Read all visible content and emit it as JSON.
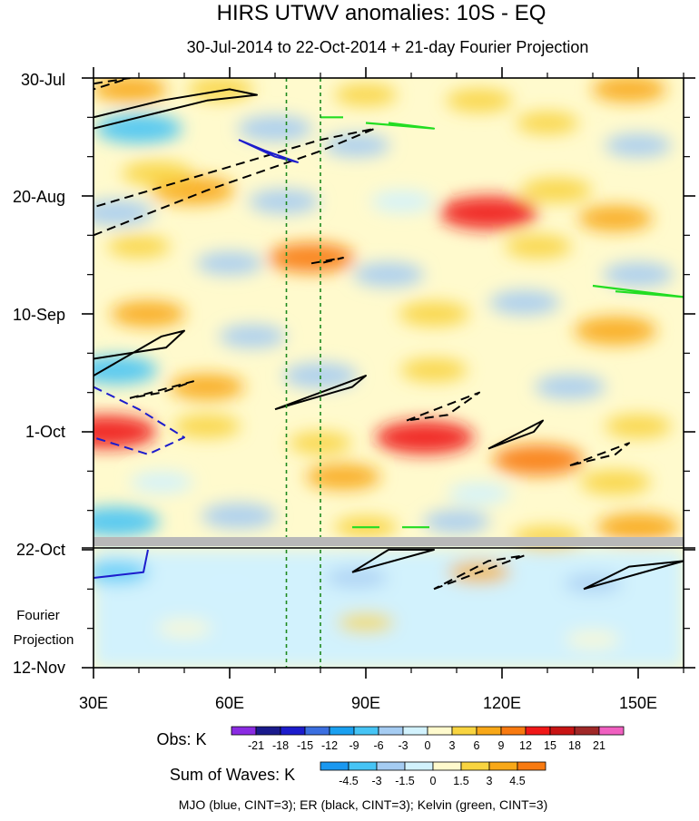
{
  "chart_data": {
    "type": "heatmap",
    "title": "HIRS UTWV anomalies: 10S - EQ",
    "subtitle": "30-Jul-2014 to 22-Oct-2014 + 21-day Fourier Projection",
    "x_axis": {
      "unit": "degrees longitude",
      "range": [
        30,
        160
      ],
      "ticks": [
        {
          "value": 30,
          "label": "30E"
        },
        {
          "value": 60,
          "label": "60E"
        },
        {
          "value": 90,
          "label": "90E"
        },
        {
          "value": 120,
          "label": "120E"
        },
        {
          "value": 150,
          "label": "150E"
        }
      ]
    },
    "y_axis": {
      "unit": "days since 30-Jul-2014",
      "range": [
        0,
        105
      ],
      "ticks": [
        {
          "value": 0,
          "label": "30-Jul"
        },
        {
          "value": 21,
          "label": "20-Aug"
        },
        {
          "value": 42,
          "label": "10-Sep"
        },
        {
          "value": 63,
          "label": "1-Oct"
        },
        {
          "value": 84,
          "label": "22-Oct"
        },
        {
          "value": 105,
          "label": "12-Nov"
        }
      ]
    },
    "observation_end_day": 84,
    "projection_label_line1": "Fourier",
    "projection_label_line2": "Projection",
    "reference_longitudes": [
      72.5,
      80
    ],
    "obs_colorbar": {
      "label": "Obs: K",
      "levels": [
        "-21",
        "-18",
        "-15",
        "-12",
        "-9",
        "-6",
        "-3",
        "0",
        "3",
        "6",
        "9",
        "12",
        "15",
        "18",
        "21"
      ],
      "colors": [
        "#8a2be2",
        "#1a1a8c",
        "#1c1ccc",
        "#3b6fe0",
        "#1aa0f0",
        "#46c4f5",
        "#a5ccf2",
        "#d2f2fd",
        "#fffacd",
        "#f8d440",
        "#f8a818",
        "#f87a10",
        "#f01818",
        "#c81414",
        "#a02828",
        "#f060c0"
      ]
    },
    "waves_colorbar": {
      "label": "Sum of Waves: K",
      "levels": [
        "-4.5",
        "-3",
        "-1.5",
        "0",
        "1.5",
        "3",
        "4.5"
      ],
      "colors": [
        "#1a98f0",
        "#46c4f5",
        "#a5ccf2",
        "#d2f2fd",
        "#fffacd",
        "#f8d440",
        "#f8a818",
        "#f87a10"
      ]
    },
    "footer": "MJO (blue, CINT=3); ER (black, CINT=3); Kelvin (green, CINT=3)",
    "anomaly_regions": [
      {
        "lon": 38,
        "day": 2,
        "value": 6
      },
      {
        "lon": 58,
        "day": 2,
        "value": 4
      },
      {
        "lon": 90,
        "day": 3,
        "value": 3
      },
      {
        "lon": 115,
        "day": 4,
        "value": 4
      },
      {
        "lon": 148,
        "day": 2,
        "value": 6
      },
      {
        "lon": 40,
        "day": 9,
        "value": -9
      },
      {
        "lon": 70,
        "day": 9,
        "value": -6
      },
      {
        "lon": 88,
        "day": 12,
        "value": -4
      },
      {
        "lon": 130,
        "day": 8,
        "value": 3
      },
      {
        "lon": 150,
        "day": 12,
        "value": -4
      },
      {
        "lon": 52,
        "day": 20,
        "value": 8
      },
      {
        "lon": 44,
        "day": 17,
        "value": 5
      },
      {
        "lon": 35,
        "day": 24,
        "value": -6
      },
      {
        "lon": 72,
        "day": 22,
        "value": -5
      },
      {
        "lon": 98,
        "day": 22,
        "value": -3
      },
      {
        "lon": 117,
        "day": 24,
        "value": 12
      },
      {
        "lon": 132,
        "day": 20,
        "value": 5
      },
      {
        "lon": 145,
        "day": 25,
        "value": 6
      },
      {
        "lon": 40,
        "day": 30,
        "value": 3
      },
      {
        "lon": 60,
        "day": 33,
        "value": -4
      },
      {
        "lon": 78,
        "day": 32,
        "value": 9
      },
      {
        "lon": 95,
        "day": 35,
        "value": -5
      },
      {
        "lon": 128,
        "day": 30,
        "value": 4
      },
      {
        "lon": 150,
        "day": 35,
        "value": -5
      },
      {
        "lon": 42,
        "day": 42,
        "value": 6
      },
      {
        "lon": 65,
        "day": 46,
        "value": -4
      },
      {
        "lon": 105,
        "day": 42,
        "value": 5
      },
      {
        "lon": 125,
        "day": 40,
        "value": -5
      },
      {
        "lon": 145,
        "day": 45,
        "value": 8
      },
      {
        "lon": 35,
        "day": 52,
        "value": -8
      },
      {
        "lon": 55,
        "day": 55,
        "value": 6
      },
      {
        "lon": 80,
        "day": 53,
        "value": -6
      },
      {
        "lon": 105,
        "day": 52,
        "value": 4
      },
      {
        "lon": 135,
        "day": 55,
        "value": -5
      },
      {
        "lon": 33,
        "day": 63,
        "value": 12
      },
      {
        "lon": 55,
        "day": 62,
        "value": 4
      },
      {
        "lon": 80,
        "day": 65,
        "value": 3
      },
      {
        "lon": 103,
        "day": 64,
        "value": 14
      },
      {
        "lon": 128,
        "day": 68,
        "value": 10
      },
      {
        "lon": 150,
        "day": 62,
        "value": 4
      },
      {
        "lon": 45,
        "day": 72,
        "value": -3
      },
      {
        "lon": 85,
        "day": 71,
        "value": 6
      },
      {
        "lon": 115,
        "day": 74,
        "value": -3
      },
      {
        "lon": 145,
        "day": 72,
        "value": 5
      },
      {
        "lon": 35,
        "day": 79,
        "value": -9
      },
      {
        "lon": 62,
        "day": 78,
        "value": -6
      },
      {
        "lon": 90,
        "day": 80,
        "value": 3
      },
      {
        "lon": 110,
        "day": 79,
        "value": -4
      },
      {
        "lon": 150,
        "day": 80,
        "value": 8
      },
      {
        "lon": 130,
        "day": 82,
        "value": 5
      },
      {
        "lon": 35,
        "day": 88,
        "value": -4
      },
      {
        "lon": 60,
        "day": 90,
        "value": -1.5
      },
      {
        "lon": 88,
        "day": 89,
        "value": -3
      },
      {
        "lon": 115,
        "day": 88,
        "value": 3
      },
      {
        "lon": 140,
        "day": 90,
        "value": -2
      },
      {
        "lon": 50,
        "day": 98,
        "value": 1
      },
      {
        "lon": 90,
        "day": 97,
        "value": 1.5
      },
      {
        "lon": 140,
        "day": 100,
        "value": 1
      }
    ],
    "contours": [
      {
        "name": "ER",
        "color": "#000000",
        "dashed": false,
        "points": [
          [
            30,
            9
          ],
          [
            45,
            6
          ],
          [
            55,
            4
          ],
          [
            66,
            3
          ],
          [
            60,
            2
          ],
          [
            45,
            4
          ],
          [
            30,
            7
          ]
        ]
      },
      {
        "name": "ER",
        "color": "#000000",
        "dashed": true,
        "points": [
          [
            30,
            1
          ],
          [
            38,
            0
          ],
          [
            30,
            2
          ]
        ]
      },
      {
        "name": "ER",
        "color": "#000000",
        "dashed": true,
        "points": [
          [
            30,
            28
          ],
          [
            55,
            20
          ],
          [
            80,
            13
          ],
          [
            92,
            9
          ],
          [
            80,
            11
          ],
          [
            55,
            17
          ],
          [
            30,
            23
          ]
        ]
      },
      {
        "name": "MJO",
        "color": "#1c1ccc",
        "dashed": false,
        "points": [
          [
            62,
            11
          ],
          [
            68,
            13
          ],
          [
            75,
            15
          ],
          [
            70,
            14
          ],
          [
            62,
            11
          ]
        ]
      },
      {
        "name": "Kelvin",
        "color": "#22dd22",
        "dashed": false,
        "points": [
          [
            80,
            7
          ],
          [
            85,
            7
          ]
        ]
      },
      {
        "name": "Kelvin",
        "color": "#22dd22",
        "dashed": false,
        "points": [
          [
            90,
            8
          ],
          [
            105,
            9
          ],
          [
            95,
            8
          ]
        ]
      },
      {
        "name": "ER",
        "color": "#000000",
        "dashed": true,
        "points": [
          [
            78,
            33
          ],
          [
            85,
            32
          ],
          [
            80,
            33
          ]
        ]
      },
      {
        "name": "Kelvin",
        "color": "#22dd22",
        "dashed": false,
        "points": [
          [
            140,
            37
          ],
          [
            160,
            39
          ],
          [
            145,
            38
          ]
        ]
      },
      {
        "name": "ER",
        "color": "#000000",
        "dashed": false,
        "points": [
          [
            30,
            53
          ],
          [
            45,
            46
          ],
          [
            50,
            45
          ],
          [
            46,
            48
          ],
          [
            30,
            50
          ]
        ]
      },
      {
        "name": "ER",
        "color": "#000000",
        "dashed": true,
        "points": [
          [
            38,
            57
          ],
          [
            52,
            54
          ],
          [
            45,
            56
          ],
          [
            38,
            57
          ]
        ]
      },
      {
        "name": "MJO",
        "color": "#1c1ccc",
        "dashed": true,
        "points": [
          [
            30,
            55
          ],
          [
            40,
            59
          ],
          [
            50,
            64
          ],
          [
            42,
            67
          ],
          [
            30,
            64
          ]
        ]
      },
      {
        "name": "ER",
        "color": "#000000",
        "dashed": false,
        "points": [
          [
            70,
            59
          ],
          [
            90,
            53
          ],
          [
            87,
            55
          ],
          [
            70,
            59
          ]
        ]
      },
      {
        "name": "ER",
        "color": "#000000",
        "dashed": true,
        "points": [
          [
            99,
            61
          ],
          [
            115,
            56
          ],
          [
            108,
            60
          ],
          [
            99,
            61
          ]
        ]
      },
      {
        "name": "ER",
        "color": "#000000",
        "dashed": false,
        "points": [
          [
            117,
            66
          ],
          [
            129,
            61
          ],
          [
            127,
            63
          ],
          [
            117,
            66
          ]
        ]
      },
      {
        "name": "ER",
        "color": "#000000",
        "dashed": true,
        "points": [
          [
            135,
            69
          ],
          [
            148,
            65
          ],
          [
            145,
            67
          ],
          [
            135,
            69
          ]
        ]
      },
      {
        "name": "Kelvin",
        "color": "#22dd22",
        "dashed": false,
        "points": [
          [
            87,
            80
          ],
          [
            93,
            80
          ]
        ]
      },
      {
        "name": "Kelvin",
        "color": "#22dd22",
        "dashed": false,
        "points": [
          [
            98,
            80
          ],
          [
            104,
            80
          ]
        ]
      },
      {
        "name": "MJO",
        "color": "#1c1ccc",
        "dashed": false,
        "points": [
          [
            30,
            89
          ],
          [
            41,
            88
          ],
          [
            42,
            84
          ]
        ]
      },
      {
        "name": "ER",
        "color": "#000000",
        "dashed": false,
        "points": [
          [
            87,
            88
          ],
          [
            105,
            84
          ],
          [
            95,
            84
          ],
          [
            87,
            88
          ]
        ]
      },
      {
        "name": "ER",
        "color": "#000000",
        "dashed": true,
        "points": [
          [
            105,
            91
          ],
          [
            125,
            85
          ],
          [
            117,
            86
          ],
          [
            105,
            91
          ]
        ]
      },
      {
        "name": "ER",
        "color": "#000000",
        "dashed": false,
        "points": [
          [
            138,
            91
          ],
          [
            160,
            86
          ],
          [
            148,
            87
          ],
          [
            138,
            91
          ]
        ]
      }
    ]
  }
}
